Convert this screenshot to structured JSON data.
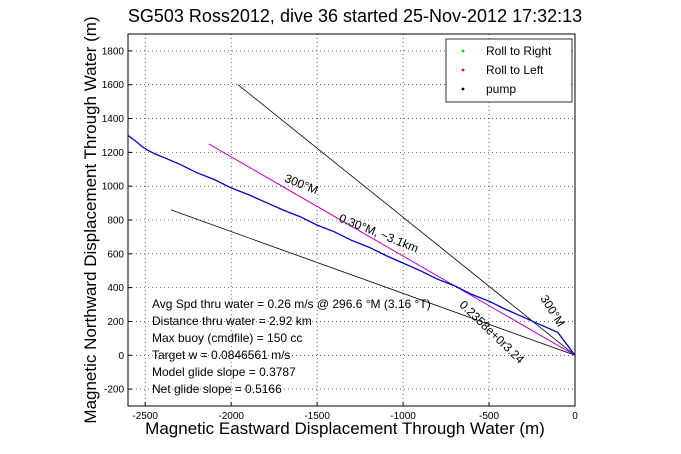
{
  "chart_data": {
    "type": "line",
    "title": "SG503 Ross2012, dive 36 started 25-Nov-2012 17:32:13",
    "xlabel": "Magnetic Eastward Displacement Through Water (m)",
    "ylabel": "Magnetic Northward Displacement Through Water (m)",
    "xlim": [
      -2600,
      0
    ],
    "ylim": [
      -300,
      1900
    ],
    "xticks": [
      -2500,
      -2000,
      -1500,
      -1000,
      -500,
      0
    ],
    "yticks": [
      -200,
      0,
      200,
      400,
      600,
      800,
      1000,
      1200,
      1400,
      1600,
      1800
    ],
    "grid": true,
    "legend_position": "top-right",
    "series": [
      {
        "name": "Roll to Right",
        "color": "#00cc00",
        "style": "dot",
        "x": [],
        "y": []
      },
      {
        "name": "Roll to Left",
        "color": "#ff0000",
        "style": "dot",
        "x": [],
        "y": []
      },
      {
        "name": "pump",
        "color": "#000000",
        "style": "dot",
        "x": [],
        "y": []
      }
    ],
    "track": {
      "color": "#0000cc",
      "x": [
        -2600,
        -2560,
        -2520,
        -2480,
        -2440,
        -2380,
        -2300,
        -2200,
        -2100,
        -2000,
        -1900,
        -1800,
        -1700,
        -1600,
        -1500,
        -1400,
        -1300,
        -1200,
        -1100,
        -1000,
        -900,
        -800,
        -700,
        -600,
        -500,
        -400,
        -300,
        -200,
        -100,
        0
      ],
      "y": [
        1300,
        1270,
        1235,
        1210,
        1190,
        1165,
        1130,
        1080,
        1040,
        990,
        950,
        905,
        860,
        820,
        770,
        730,
        680,
        640,
        590,
        545,
        500,
        450,
        410,
        360,
        320,
        270,
        225,
        180,
        135,
        0
      ]
    },
    "target_line": {
      "color": "#cc00cc",
      "x": [
        -2130,
        0
      ],
      "y": [
        1250,
        0
      ]
    },
    "course_lines": [
      {
        "label": "300°M",
        "x": [
          -1960,
          0
        ],
        "y": [
          1600,
          0
        ]
      },
      {
        "label": "",
        "x": [
          -2350,
          0
        ],
        "y": [
          860,
          0
        ]
      }
    ],
    "line_annotations": [
      {
        "text": "300°M",
        "x": -1600,
        "y": 990,
        "rotation": 22
      },
      {
        "text": "0.30°M, ~3.1km",
        "x": -1150,
        "y": 700,
        "rotation": 22
      },
      {
        "text": "300°M",
        "x": -150,
        "y": 250,
        "rotation": 58
      },
      {
        "text": "0.2358e+0r3.24",
        "x": -500,
        "y": 120,
        "rotation": 44
      }
    ],
    "stats": [
      "Avg Spd thru water =  0.26 m/s @ 296.6 °M (3.16 °T)",
      "Distance thru water =  2.92 km",
      "Max buoy (cmdfile) = 150 cc",
      "Target w = 0.0846561 m/s",
      "Model glide slope = 0.3787",
      "Net glide slope = 0.5166"
    ]
  }
}
